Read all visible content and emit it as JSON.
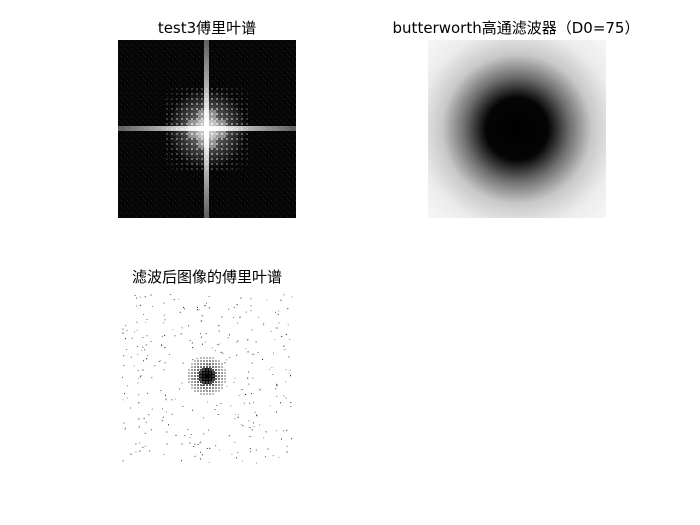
{
  "figure": {
    "panels": [
      {
        "title": "test3傅里叶谱",
        "image": "fourier-spectrum",
        "background": "#000000"
      },
      {
        "title": "butterworth高通滤波器（D0=75）",
        "image": "highpass-filter-mask",
        "background": "#ffffff"
      },
      {
        "title": "滤波后图像的傅里叶谱",
        "image": "filtered-spectrum",
        "background": "#ffffff"
      }
    ]
  }
}
